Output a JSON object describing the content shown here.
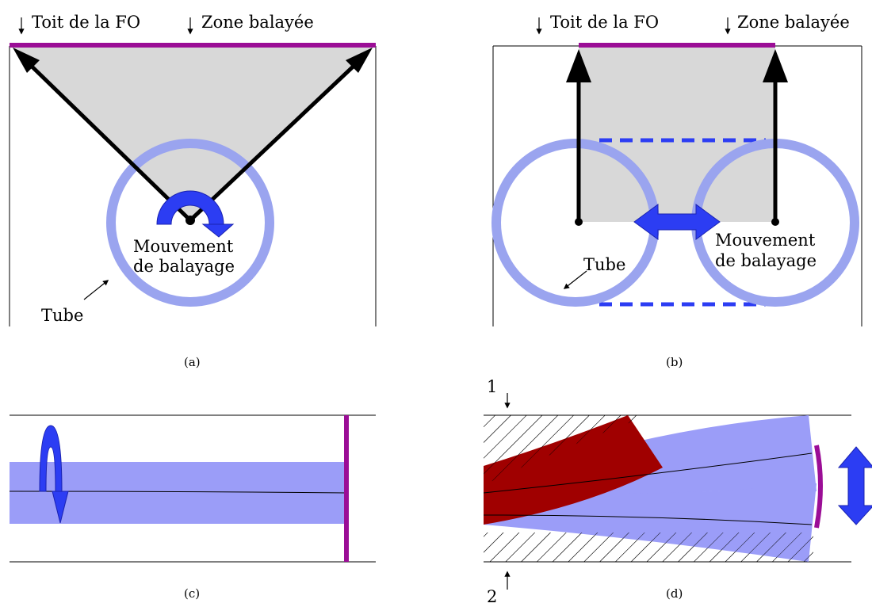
{
  "colors": {
    "zone": "#9b0d96",
    "tube_ring": "#9aa4ef",
    "tube_band": "#9b9df8",
    "motion_arrow": "#2c3df3",
    "swept_area": "#d8d8d8",
    "fiber_bent": "#a00000"
  },
  "panel_a": {
    "label_roof": "Toit de la FO",
    "label_zone": "Zone balayée",
    "label_motion_line1": "Mouvement",
    "label_motion_line2": "de balayage",
    "label_tube": "Tube",
    "caption": "(a)"
  },
  "panel_b": {
    "label_roof": "Toit de la FO",
    "label_zone": "Zone balayée",
    "label_tube": "Tube",
    "label_motion_line1": "Mouvement",
    "label_motion_line2": "de balayage",
    "caption": "(b)"
  },
  "panel_c": {
    "caption": "(c)"
  },
  "panel_d": {
    "label_1": "1",
    "label_2": "2",
    "caption": "(d)"
  },
  "icons": [
    "down-arrow-icon",
    "rotation-arrow-icon",
    "double-arrow-icon",
    "pointer-arrow-icon"
  ]
}
